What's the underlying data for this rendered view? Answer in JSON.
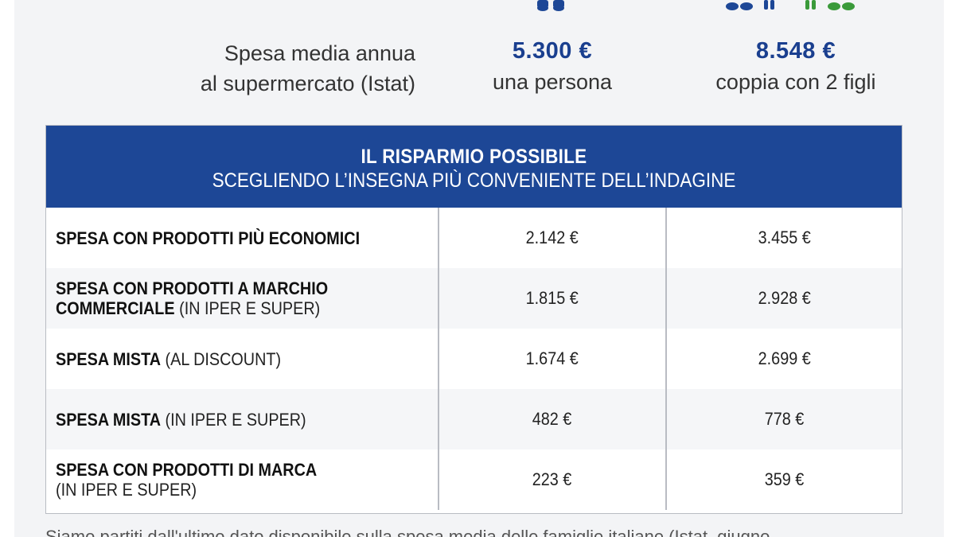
{
  "summary": {
    "label_line1": "Spesa media annua",
    "label_line2": "al supermercato (Istat)",
    "single": {
      "value": "5.300 €",
      "desc": "una persona"
    },
    "family": {
      "value": "8.548 €",
      "desc": "coppia con 2 figli"
    }
  },
  "icons": {
    "single": "person-feet-icon",
    "family": "family-feet-icon",
    "colors": {
      "blue": "#1d4796",
      "green": "#3a9a3a"
    }
  },
  "table": {
    "title": "IL RISPARMIO POSSIBILE",
    "subtitle": "SCEGLIENDO L’INSEGNA PIÙ CONVENIENTE DELL’INDAGINE",
    "rows": [
      {
        "bold": "SPESA CON PRODOTTI PIÙ ECONOMICI",
        "bold2": "",
        "normal": "",
        "v1": "2.142 €",
        "v2": "3.455 €"
      },
      {
        "bold": "SPESA CON  PRODOTTI A MARCHIO",
        "bold2": "COMMERCIALE",
        "normal": " (IN IPER E SUPER)",
        "v1": "1.815 €",
        "v2": "2.928 €"
      },
      {
        "bold": "SPESA MISTA",
        "bold2": "",
        "normal": " (AL DISCOUNT)",
        "v1": "1.674 €",
        "v2": "2.699 €"
      },
      {
        "bold": "SPESA MISTA",
        "bold2": "",
        "normal": " (IN IPER E SUPER)",
        "v1": "482 €",
        "v2": "778 €"
      },
      {
        "bold": "SPESA CON PRODOTTI DI MARCA",
        "bold2": "",
        "normal": "(IN IPER E SUPER)",
        "v1": "223 €",
        "v2": "359 €"
      }
    ]
  },
  "footnote": "Siamo partiti dall'ultimo dato disponibile sulla spesa media delle famiglie italiane (Istat, giugno"
}
